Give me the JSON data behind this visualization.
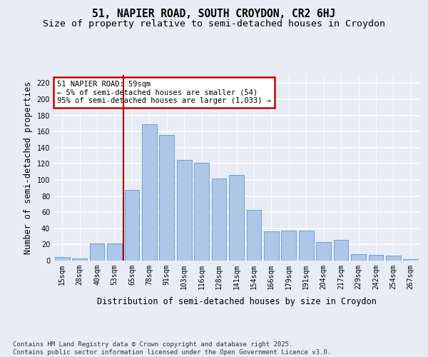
{
  "title": "51, NAPIER ROAD, SOUTH CROYDON, CR2 6HJ",
  "subtitle": "Size of property relative to semi-detached houses in Croydon",
  "xlabel": "Distribution of semi-detached houses by size in Croydon",
  "ylabel": "Number of semi-detached properties",
  "categories": [
    "15sqm",
    "28sqm",
    "40sqm",
    "53sqm",
    "65sqm",
    "78sqm",
    "91sqm",
    "103sqm",
    "116sqm",
    "128sqm",
    "141sqm",
    "154sqm",
    "166sqm",
    "179sqm",
    "191sqm",
    "204sqm",
    "217sqm",
    "229sqm",
    "242sqm",
    "254sqm",
    "267sqm"
  ],
  "values": [
    4,
    3,
    21,
    21,
    88,
    169,
    156,
    125,
    121,
    102,
    106,
    63,
    36,
    37,
    37,
    23,
    26,
    8,
    7,
    6,
    2
  ],
  "bar_color": "#aec6e8",
  "bar_edge_color": "#5b9bd5",
  "bg_color": "#e8ecf5",
  "grid_color": "#ffffff",
  "annotation_text_line1": "51 NAPIER ROAD: 59sqm",
  "annotation_text_line2": "← 5% of semi-detached houses are smaller (54)",
  "annotation_text_line3": "95% of semi-detached houses are larger (1,033) →",
  "annotation_box_color": "#ffffff",
  "annotation_box_edge": "#cc0000",
  "vline_x": 3.5,
  "vline_color": "#aa0000",
  "ylim": [
    0,
    230
  ],
  "yticks": [
    0,
    20,
    40,
    60,
    80,
    100,
    120,
    140,
    160,
    180,
    200,
    220
  ],
  "footnote": "Contains HM Land Registry data © Crown copyright and database right 2025.\nContains public sector information licensed under the Open Government Licence v3.0.",
  "title_fontsize": 10.5,
  "subtitle_fontsize": 9.5,
  "label_fontsize": 8.5,
  "tick_fontsize": 7,
  "footnote_fontsize": 6.5,
  "annot_fontsize": 7.5
}
